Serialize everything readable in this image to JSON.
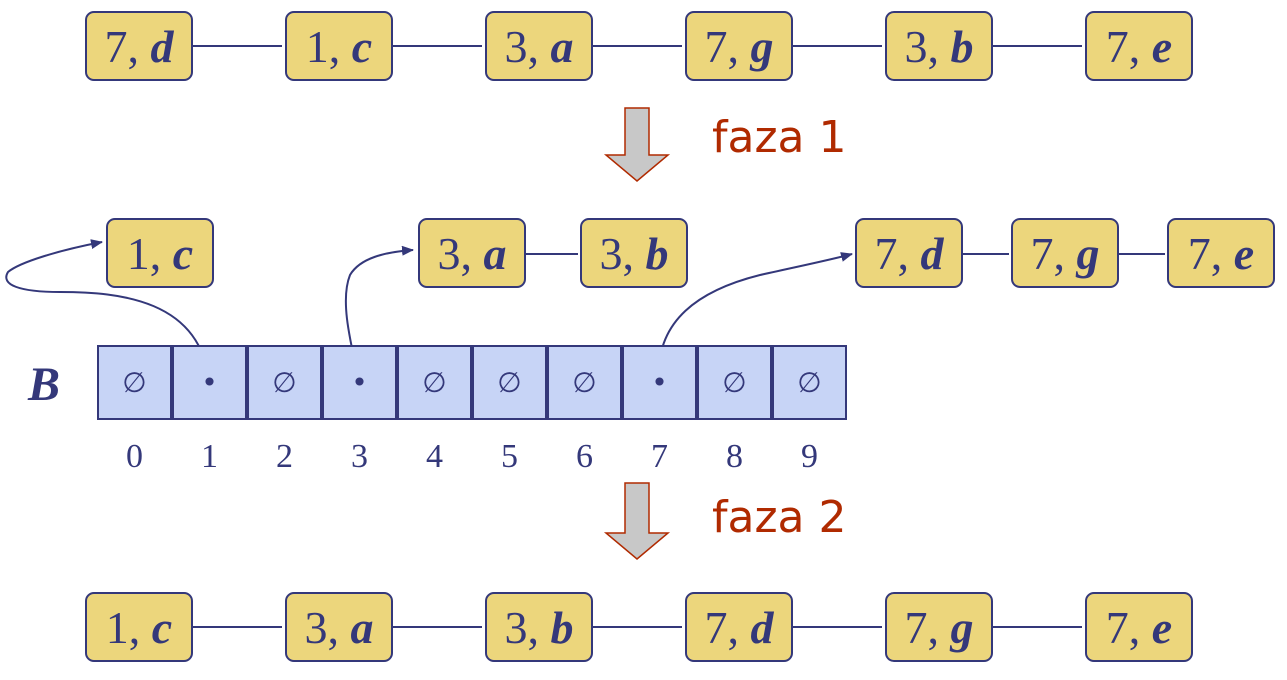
{
  "row1": [
    {
      "key": "7",
      "val": "d"
    },
    {
      "key": "1",
      "val": "c"
    },
    {
      "key": "3",
      "val": "a"
    },
    {
      "key": "7",
      "val": "g"
    },
    {
      "key": "3",
      "val": "b"
    },
    {
      "key": "7",
      "val": "e"
    }
  ],
  "phase1": "faza 1",
  "bucket_lists": {
    "b1": [
      {
        "key": "1",
        "val": "c"
      }
    ],
    "b3": [
      {
        "key": "3",
        "val": "a"
      },
      {
        "key": "3",
        "val": "b"
      }
    ],
    "b7": [
      {
        "key": "7",
        "val": "d"
      },
      {
        "key": "7",
        "val": "g"
      },
      {
        "key": "7",
        "val": "e"
      }
    ]
  },
  "array_label": "B",
  "cells": [
    "∅",
    "•",
    "∅",
    "•",
    "∅",
    "∅",
    "∅",
    "•",
    "∅",
    "∅"
  ],
  "indices": [
    "0",
    "1",
    "2",
    "3",
    "4",
    "5",
    "6",
    "7",
    "8",
    "9"
  ],
  "phase2": "faza 2",
  "row3": [
    {
      "key": "1",
      "val": "c"
    },
    {
      "key": "3",
      "val": "a"
    },
    {
      "key": "3",
      "val": "b"
    },
    {
      "key": "7",
      "val": "d"
    },
    {
      "key": "7",
      "val": "g"
    },
    {
      "key": "7",
      "val": "e"
    }
  ],
  "colors": {
    "node_fill": "#ecd67c",
    "cell_fill": "#c7d4f6",
    "ink": "#34387a",
    "phase_text": "#b02a00",
    "arrow_fill": "#c8c8c8"
  }
}
